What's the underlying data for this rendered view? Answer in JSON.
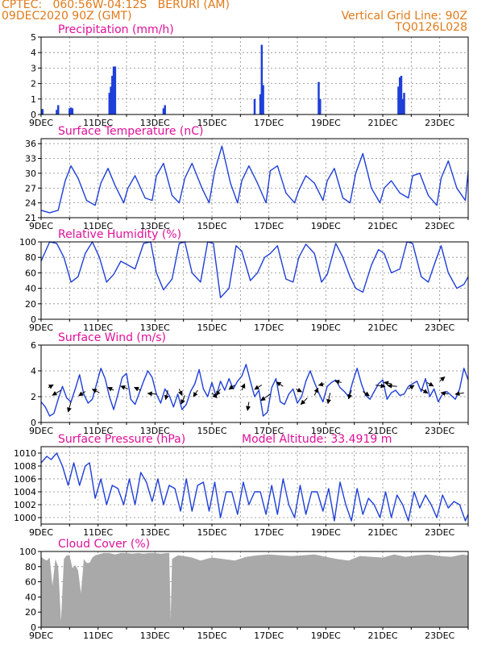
{
  "header": {
    "station": "CPTEC:   060:56W-04:12S   BERURI (AM)",
    "datetime": "09DEC2020 90Z (GMT)",
    "grid_note": "Vertical Grid Line: 90Z",
    "run_id": "TQ0126L028"
  },
  "colors": {
    "header": "#e07a1a",
    "title": "#e0109a",
    "line": "#1f3fd8",
    "cloud": "#a9a9a9",
    "wind_arrow": "#000000"
  },
  "x_ticks": [
    "9DEC",
    "11DEC",
    "13DEC",
    "15DEC",
    "17DEC",
    "19DEC",
    "21DEC",
    "23DEC"
  ],
  "x_domain_days": [
    0,
    15
  ],
  "chart_data": [
    {
      "type": "bar",
      "title": "Precipitation  (mm/h)",
      "ylim": [
        0,
        5
      ],
      "yticks": [
        "0",
        "1",
        "2",
        "3",
        "4",
        "5"
      ],
      "grid": true,
      "x_day": [
        0.05,
        0.55,
        0.6,
        1.0,
        1.05,
        1.1,
        2.4,
        2.45,
        2.5,
        2.55,
        2.6,
        4.3,
        4.35,
        7.5,
        7.7,
        7.75,
        7.8,
        9.75,
        9.8,
        12.55,
        12.6,
        12.65,
        12.7,
        12.75
      ],
      "values": [
        0.35,
        0.3,
        0.6,
        0.4,
        0.45,
        0.4,
        1.4,
        1.8,
        2.5,
        3.1,
        3.1,
        0.4,
        0.6,
        1.0,
        1.3,
        4.5,
        1.9,
        2.1,
        1.0,
        1.8,
        2.4,
        2.5,
        1.0,
        1.4
      ]
    },
    {
      "type": "line",
      "title": "Surface Temperature (nC)",
      "ylim": [
        21,
        37
      ],
      "yticks": [
        "21",
        "24",
        "27",
        "30",
        "33",
        "36"
      ],
      "grid": true,
      "x_day": [
        0,
        0.3,
        0.6,
        0.85,
        1.05,
        1.3,
        1.6,
        1.9,
        2.1,
        2.35,
        2.6,
        2.9,
        3.05,
        3.3,
        3.65,
        3.9,
        4.05,
        4.3,
        4.6,
        4.85,
        5.05,
        5.3,
        5.65,
        5.9,
        6.1,
        6.35,
        6.65,
        6.9,
        7.05,
        7.3,
        7.6,
        7.9,
        8.05,
        8.3,
        8.6,
        8.9,
        9.05,
        9.3,
        9.6,
        9.9,
        10.05,
        10.3,
        10.6,
        10.85,
        11.05,
        11.3,
        11.6,
        11.9,
        12.05,
        12.3,
        12.6,
        12.9,
        13.05,
        13.3,
        13.6,
        13.9,
        14.05,
        14.3,
        14.6,
        14.9,
        15.0
      ],
      "values": [
        22.5,
        22.0,
        22.5,
        28.5,
        31.5,
        29.0,
        24.5,
        23.5,
        28.0,
        31.0,
        27.5,
        24.0,
        27.0,
        29.5,
        25.0,
        24.5,
        29.5,
        32.0,
        25.5,
        24.0,
        29.0,
        32.0,
        27.0,
        24.0,
        30.5,
        35.5,
        28.0,
        24.0,
        28.5,
        31.5,
        28.0,
        24.0,
        30.5,
        31.5,
        26.0,
        24.0,
        26.5,
        29.5,
        28.0,
        24.5,
        28.5,
        31.0,
        25.0,
        24.0,
        30.0,
        34.0,
        27.0,
        24.0,
        27.0,
        28.5,
        26.0,
        25.0,
        29.5,
        30.0,
        25.5,
        23.5,
        29.0,
        32.5,
        27.0,
        24.5,
        30.5
      ]
    },
    {
      "type": "line",
      "title": "Relative Humidity (%)",
      "ylim": [
        0,
        100
      ],
      "yticks": [
        "0",
        "20",
        "40",
        "60",
        "80",
        "100"
      ],
      "grid": true,
      "x_day": [
        0,
        0.3,
        0.55,
        0.8,
        1.05,
        1.3,
        1.55,
        1.8,
        2.05,
        2.3,
        2.55,
        2.8,
        3.05,
        3.3,
        3.6,
        3.85,
        4.05,
        4.3,
        4.6,
        4.85,
        5.05,
        5.3,
        5.6,
        5.85,
        6.05,
        6.3,
        6.6,
        6.85,
        7.05,
        7.35,
        7.6,
        7.85,
        8.05,
        8.3,
        8.6,
        8.85,
        9.05,
        9.3,
        9.6,
        9.85,
        10.05,
        10.35,
        10.6,
        10.85,
        11.05,
        11.3,
        11.6,
        11.85,
        12.05,
        12.3,
        12.6,
        12.85,
        13.05,
        13.35,
        13.6,
        13.85,
        14.05,
        14.3,
        14.6,
        14.85,
        15.0
      ],
      "values": [
        75,
        100,
        98,
        80,
        48,
        55,
        85,
        100,
        80,
        48,
        58,
        75,
        70,
        65,
        98,
        100,
        60,
        38,
        52,
        98,
        100,
        60,
        48,
        100,
        98,
        28,
        40,
        95,
        88,
        50,
        60,
        80,
        85,
        95,
        52,
        48,
        80,
        97,
        85,
        48,
        58,
        98,
        80,
        55,
        40,
        35,
        70,
        90,
        85,
        60,
        65,
        100,
        98,
        55,
        48,
        75,
        95,
        60,
        40,
        45,
        55
      ]
    },
    {
      "type": "line",
      "title": "Surface Wind (m/s)",
      "ylim": [
        0,
        6
      ],
      "yticks": [
        "0",
        "2",
        "4",
        "6"
      ],
      "grid": true,
      "x_day": [
        0,
        0.15,
        0.3,
        0.45,
        0.6,
        0.75,
        0.9,
        1.05,
        1.2,
        1.35,
        1.5,
        1.65,
        1.8,
        1.95,
        2.1,
        2.25,
        2.4,
        2.55,
        2.7,
        2.85,
        3.0,
        3.15,
        3.3,
        3.45,
        3.6,
        3.75,
        3.9,
        4.05,
        4.2,
        4.35,
        4.5,
        4.65,
        4.8,
        4.95,
        5.1,
        5.25,
        5.4,
        5.55,
        5.7,
        5.85,
        6.0,
        6.15,
        6.3,
        6.45,
        6.6,
        6.75,
        6.9,
        7.05,
        7.2,
        7.35,
        7.5,
        7.65,
        7.8,
        7.95,
        8.1,
        8.25,
        8.4,
        8.55,
        8.7,
        8.85,
        9.0,
        9.15,
        9.3,
        9.45,
        9.6,
        9.75,
        9.9,
        10.05,
        10.2,
        10.35,
        10.5,
        10.65,
        10.8,
        10.95,
        11.1,
        11.25,
        11.4,
        11.55,
        11.7,
        11.85,
        12.0,
        12.15,
        12.3,
        12.45,
        12.6,
        12.75,
        12.9,
        13.05,
        13.2,
        13.35,
        13.5,
        13.65,
        13.8,
        13.95,
        14.1,
        14.25,
        14.4,
        14.55,
        14.7,
        14.85,
        15.0
      ],
      "values": [
        1.6,
        1.2,
        0.5,
        0.7,
        1.8,
        2.8,
        1.9,
        1.6,
        2.6,
        3.7,
        2.2,
        1.5,
        1.8,
        3.0,
        4.2,
        3.4,
        2.0,
        1.0,
        2.2,
        3.5,
        3.8,
        1.8,
        1.4,
        2.3,
        3.2,
        4.0,
        3.5,
        2.2,
        1.5,
        2.6,
        2.1,
        1.2,
        2.2,
        1.0,
        1.4,
        2.4,
        3.0,
        4.1,
        2.6,
        2.0,
        3.1,
        2.0,
        3.2,
        2.5,
        3.4,
        2.6,
        3.2,
        3.6,
        4.5,
        3.2,
        2.0,
        2.5,
        0.5,
        0.8,
        2.7,
        3.4,
        1.6,
        1.4,
        2.2,
        2.6,
        1.5,
        2.0,
        3.2,
        4.0,
        3.1,
        2.3,
        1.6,
        2.8,
        3.1,
        3.3,
        2.7,
        2.4,
        2.0,
        3.2,
        4.2,
        3.0,
        2.1,
        1.8,
        2.4,
        3.0,
        3.3,
        1.8,
        2.3,
        2.5,
        2.1,
        2.2,
        2.8,
        3.0,
        3.2,
        2.4,
        3.4,
        2.0,
        2.6,
        1.6,
        2.2,
        2.4,
        2.1,
        1.8,
        2.6,
        4.2,
        3.3
      ],
      "wind_vectors": {
        "x_day": [
          0.25,
          0.7,
          1.05,
          1.55,
          2.05,
          2.55,
          3.05,
          3.5,
          4.05,
          4.45,
          4.85,
          5.05,
          5.5,
          6.0,
          6.3,
          6.8,
          7.05,
          7.3,
          7.75,
          8.05,
          8.5,
          8.95,
          9.35,
          9.6,
          9.95,
          10.15,
          10.55,
          10.9,
          11.3,
          11.75,
          12.3,
          12.5,
          12.9,
          13.35,
          13.55,
          14.0,
          14.3,
          14.85
        ],
        "y": [
          2.7,
          2.5,
          1.6,
          2.4,
          2.3,
          2.5,
          2.6,
          2.5,
          2.2,
          2.5,
          2.6,
          2.1,
          2.5,
          2.3,
          2.6,
          2.9,
          2.5,
          1.6,
          2.9,
          2.2,
          2.8,
          2.6,
          1.9,
          2.1,
          3.0,
          2.3,
          3.1,
          2.5,
          2.4,
          2.9,
          3.0,
          2.8,
          2.6,
          2.6,
          3.1,
          3.2,
          2.2,
          2.3
        ],
        "u": [
          0.7,
          -1.2,
          -0.4,
          -0.9,
          -1.0,
          -0.8,
          -1.0,
          -0.9,
          -1.2,
          -0.3,
          0.4,
          -0.5,
          -0.6,
          0.7,
          -0.6,
          -0.8,
          0.4,
          -0.2,
          -1.0,
          -1.3,
          -0.9,
          0.8,
          -0.9,
          0.5,
          -0.8,
          -0.3,
          -0.9,
          -0.4,
          0.9,
          1.3,
          -1.0,
          -1.3,
          0.8,
          0.9,
          0.9,
          0.7,
          -1.0,
          -1.2
        ],
        "v": [
          0.4,
          -0.7,
          -1.4,
          -0.6,
          0.5,
          0.4,
          0.4,
          0.4,
          0.1,
          -1.3,
          -0.9,
          -1.2,
          -0.9,
          -0.7,
          -0.9,
          -0.6,
          0.9,
          -1.2,
          -0.6,
          -0.9,
          0.6,
          -0.4,
          -0.9,
          1.0,
          -0.2,
          -1.5,
          0.2,
          -1.2,
          -0.6,
          -0.2,
          0.2,
          0.1,
          0.5,
          -0.6,
          -0.5,
          0.6,
          0.2,
          -0.2
        ]
      }
    },
    {
      "type": "line",
      "title": "Surface Pressure (hPa)",
      "annotation": "Model Altitude: 33.4919 m",
      "ylim": [
        999,
        1011
      ],
      "yticks": [
        "1000",
        "1002",
        "1004",
        "1006",
        "1008",
        "1010"
      ],
      "grid": true,
      "x_day": [
        0,
        0.2,
        0.35,
        0.55,
        0.75,
        0.95,
        1.15,
        1.35,
        1.55,
        1.7,
        1.9,
        2.1,
        2.3,
        2.5,
        2.7,
        2.9,
        3.1,
        3.3,
        3.5,
        3.7,
        3.9,
        4.1,
        4.3,
        4.5,
        4.7,
        4.9,
        5.1,
        5.3,
        5.5,
        5.7,
        5.9,
        6.1,
        6.3,
        6.5,
        6.7,
        6.9,
        7.1,
        7.3,
        7.5,
        7.7,
        7.9,
        8.1,
        8.3,
        8.5,
        8.7,
        8.9,
        9.1,
        9.3,
        9.5,
        9.7,
        9.9,
        10.1,
        10.3,
        10.5,
        10.7,
        10.9,
        11.1,
        11.3,
        11.5,
        11.7,
        11.9,
        12.1,
        12.3,
        12.5,
        12.7,
        12.9,
        13.1,
        13.3,
        13.5,
        13.7,
        13.9,
        14.1,
        14.3,
        14.5,
        14.7,
        14.9,
        15.0
      ],
      "values": [
        1008.5,
        1009.5,
        1009.0,
        1010.0,
        1008.0,
        1005.0,
        1008.5,
        1005.0,
        1008.0,
        1008.5,
        1003.0,
        1006.0,
        1002.0,
        1005.0,
        1004.5,
        1002.0,
        1006.0,
        1002.0,
        1007.0,
        1005.5,
        1002.5,
        1006.0,
        1002.0,
        1005.0,
        1004.5,
        1001.0,
        1006.0,
        1001.0,
        1005.0,
        1005.5,
        1001.0,
        1005.5,
        1000.0,
        1004.0,
        1004.0,
        1000.5,
        1005.5,
        1002.0,
        1004.0,
        1004.0,
        1000.5,
        1005.0,
        1000.5,
        1006.0,
        1002.0,
        1000.0,
        1005.0,
        1000.5,
        1004.0,
        1004.0,
        1001.0,
        1004.5,
        999.5,
        1005.5,
        1002.0,
        999.5,
        1004.5,
        1000.5,
        1003.0,
        1002.0,
        1000.0,
        1004.0,
        1000.0,
        1003.5,
        1002.0,
        999.5,
        1004.0,
        1001.5,
        1003.5,
        1002.0,
        1000.0,
        1003.5,
        1001.5,
        1002.5,
        1002.0,
        999.5,
        1000.5
      ]
    },
    {
      "type": "area",
      "title": "Cloud Cover (%)",
      "ylim": [
        0,
        100
      ],
      "yticks": [
        "0",
        "20",
        "40",
        "60",
        "80",
        "100"
      ],
      "grid": true,
      "x_day": [
        0,
        0.1,
        0.2,
        0.3,
        0.4,
        0.5,
        0.6,
        0.7,
        0.8,
        0.9,
        1.0,
        1.1,
        1.2,
        1.3,
        1.4,
        1.5,
        1.6,
        1.7,
        1.8,
        1.9,
        2.0,
        2.2,
        2.4,
        2.6,
        2.8,
        3.0,
        3.2,
        3.4,
        3.6,
        3.8,
        4.0,
        4.2,
        4.4,
        4.5,
        4.55,
        4.6,
        4.8,
        5.0,
        5.3,
        5.6,
        6.0,
        6.4,
        6.8,
        7.2,
        7.6,
        8.0,
        8.4,
        8.8,
        9.2,
        9.6,
        10.0,
        10.4,
        10.8,
        11.2,
        11.6,
        12.0,
        12.4,
        12.8,
        13.2,
        13.6,
        14.0,
        14.4,
        14.8,
        15.0
      ],
      "values": [
        93,
        90,
        88,
        92,
        55,
        90,
        80,
        8,
        90,
        95,
        95,
        78,
        82,
        75,
        45,
        90,
        85,
        85,
        92,
        95,
        96,
        98,
        98,
        96,
        98,
        98,
        97,
        98,
        97,
        98,
        98,
        97,
        98,
        98,
        10,
        90,
        95,
        94,
        92,
        88,
        92,
        90,
        88,
        93,
        95,
        96,
        95,
        94,
        95,
        96,
        93,
        90,
        88,
        94,
        93,
        92,
        96,
        93,
        95,
        96,
        94,
        93,
        96,
        95
      ]
    }
  ]
}
